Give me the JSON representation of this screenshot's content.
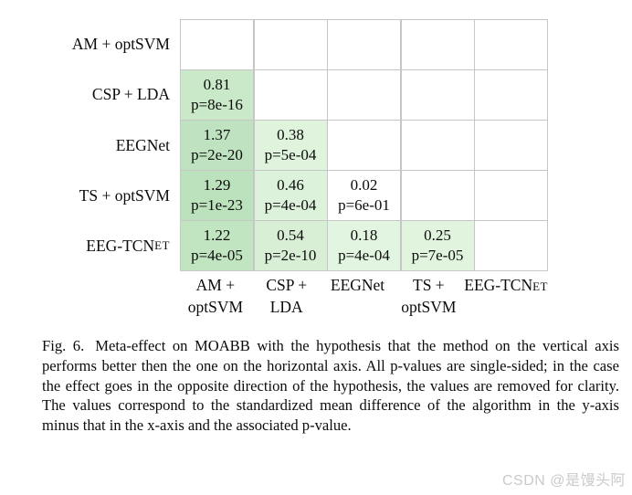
{
  "figure": {
    "matrix": {
      "row_labels": [
        {
          "text": "AM + optSVM",
          "smallcaps": ""
        },
        {
          "text": "CSP + LDA",
          "smallcaps": ""
        },
        {
          "text": "EEGNet",
          "smallcaps": ""
        },
        {
          "text": "TS + optSVM",
          "smallcaps": ""
        },
        {
          "text": "EEG-TCN",
          "smallcaps": "ET"
        }
      ],
      "col_labels": [
        {
          "line1": "AM +",
          "line1_smallcaps": "",
          "line2": "optSVM"
        },
        {
          "line1": "CSP +",
          "line1_smallcaps": "",
          "line2": "LDA"
        },
        {
          "line1": "EEGNet",
          "line1_smallcaps": "",
          "line2": ""
        },
        {
          "line1": "TS +",
          "line1_smallcaps": "",
          "line2": "optSVM"
        },
        {
          "line1": "EEG-TCN",
          "line1_smallcaps": "ET",
          "line2": ""
        }
      ],
      "rows": [
        {
          "cells": [
            null,
            null,
            null,
            null,
            null
          ]
        },
        {
          "cells": [
            {
              "value": "0.81",
              "p": "p=8e-16",
              "bg": "#c9e9c9"
            },
            null,
            null,
            null,
            null
          ]
        },
        {
          "cells": [
            {
              "value": "1.37",
              "p": "p=2e-20",
              "bg": "#bfe3c0"
            },
            {
              "value": "0.38",
              "p": "p=5e-04",
              "bg": "#dff3dd"
            },
            null,
            null,
            null
          ]
        },
        {
          "cells": [
            {
              "value": "1.29",
              "p": "p=1e-23",
              "bg": "#bce2bd"
            },
            {
              "value": "0.46",
              "p": "p=4e-04",
              "bg": "#ddf2db"
            },
            {
              "value": "0.02",
              "p": "p=6e-01",
              "bg": "#ffffff"
            },
            null,
            null
          ]
        },
        {
          "cells": [
            {
              "value": "1.22",
              "p": "p=4e-05",
              "bg": "#c1e4c1"
            },
            {
              "value": "0.54",
              "p": "p=2e-10",
              "bg": "#d8efd6"
            },
            {
              "value": "0.18",
              "p": "p=4e-04",
              "bg": "#e2f5e0"
            },
            {
              "value": "0.25",
              "p": "p=7e-05",
              "bg": "#e0f4de"
            },
            null
          ]
        }
      ]
    },
    "caption": {
      "fig_label": "Fig. 6.",
      "text": "Meta-effect on MOABB with the hypothesis that the method on the vertical axis performs better then the one on the horizontal axis. All p-values are single-sided; in the case the effect goes in the opposite direction of the hypothesis, the values are removed for clarity. The values correspond to the standardized mean difference of the algorithm in the y-axis minus that in the x-axis and the associated p-value."
    },
    "watermark": "CSDN @是馒头阿",
    "colors": {
      "grid_line": "#c6c6c6",
      "green_strong": "#bce2bd",
      "green_light": "#e2f5e0",
      "watermark_gray": "#ccc9c9"
    }
  },
  "chart_data": {
    "type": "heatmap",
    "title": "Meta-effect on MOABB",
    "y_categories": [
      "AM + optSVM",
      "CSP + LDA",
      "EEGNet",
      "TS + optSVM",
      "EEG-TCNet"
    ],
    "x_categories": [
      "AM + optSVM",
      "CSP + LDA",
      "EEGNet",
      "TS + optSVM",
      "EEG-TCNet"
    ],
    "cells": [
      {
        "y": "CSP + LDA",
        "x": "AM + optSVM",
        "value": 0.81,
        "p": "8e-16"
      },
      {
        "y": "EEGNet",
        "x": "AM + optSVM",
        "value": 1.37,
        "p": "2e-20"
      },
      {
        "y": "EEGNet",
        "x": "CSP + LDA",
        "value": 0.38,
        "p": "5e-04"
      },
      {
        "y": "TS + optSVM",
        "x": "AM + optSVM",
        "value": 1.29,
        "p": "1e-23"
      },
      {
        "y": "TS + optSVM",
        "x": "CSP + LDA",
        "value": 0.46,
        "p": "4e-04"
      },
      {
        "y": "TS + optSVM",
        "x": "EEGNet",
        "value": 0.02,
        "p": "6e-01"
      },
      {
        "y": "EEG-TCNet",
        "x": "AM + optSVM",
        "value": 1.22,
        "p": "4e-05"
      },
      {
        "y": "EEG-TCNet",
        "x": "CSP + LDA",
        "value": 0.54,
        "p": "2e-10"
      },
      {
        "y": "EEG-TCNet",
        "x": "EEGNet",
        "value": 0.18,
        "p": "4e-04"
      },
      {
        "y": "EEG-TCNet",
        "x": "TS + optSVM",
        "value": 0.25,
        "p": "7e-05"
      }
    ],
    "legend_position": "none",
    "grid": true
  }
}
